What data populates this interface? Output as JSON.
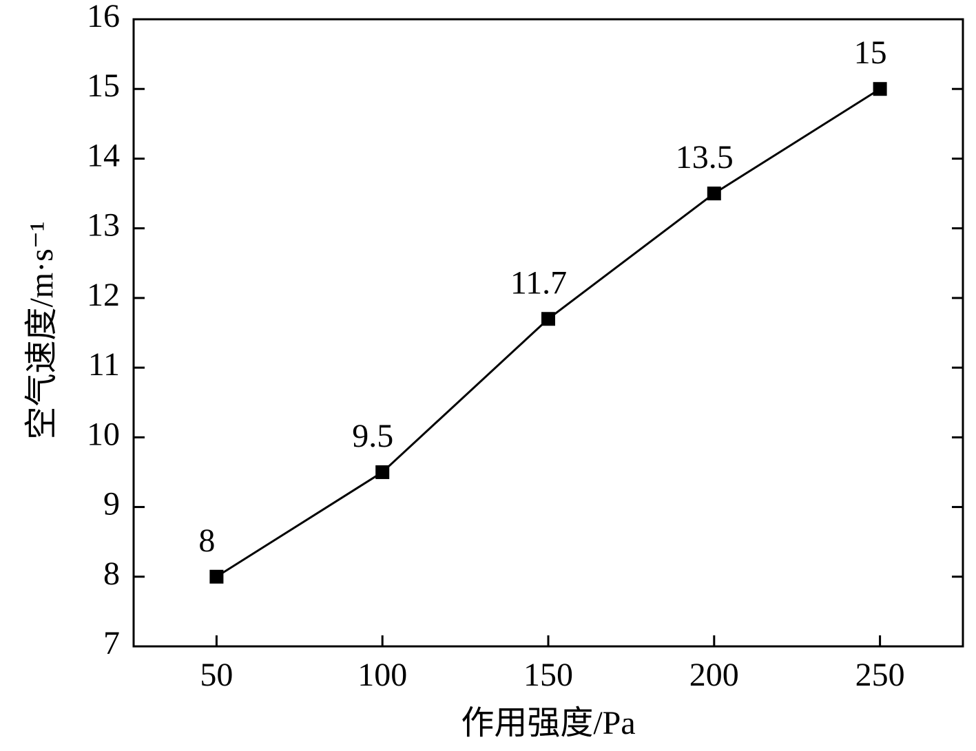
{
  "chart_data": {
    "type": "line",
    "x_label": "作用强度/Pa",
    "y_label": "空气速度/m·s⁻¹",
    "x": [
      50,
      100,
      150,
      200,
      250
    ],
    "values": [
      8,
      9.5,
      11.7,
      13.5,
      15
    ],
    "color": "#000000",
    "marker": "square",
    "xlim": [
      25,
      275
    ],
    "xticks": [
      50,
      100,
      150,
      200,
      250
    ],
    "ylim": [
      7,
      16
    ],
    "yticks": [
      7,
      8,
      9,
      10,
      11,
      12,
      13,
      14,
      15,
      16
    ],
    "grid": false
  }
}
